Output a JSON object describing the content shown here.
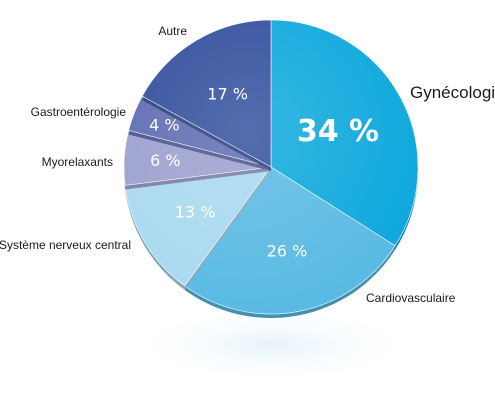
{
  "chart_data": {
    "type": "pie",
    "title": "",
    "slices": [
      {
        "label": "Gynécologie",
        "value": 34,
        "value_label": "34 %",
        "color": "#0aa7dc"
      },
      {
        "label": "Cardiovasculaire",
        "value": 26,
        "value_label": "26 %",
        "color": "#57b9e3"
      },
      {
        "label": "Système nerveux central",
        "value": 13,
        "value_label": "13 %",
        "color": "#a8d8ef"
      },
      {
        "label": "Myorelaxants",
        "value": 6,
        "value_label": "6 %",
        "color": "#9a9fce"
      },
      {
        "label": "Gastroentérologie",
        "value": 4,
        "value_label": "4 %",
        "color": "#5d6ab2"
      },
      {
        "label": "Autre",
        "value": 17,
        "value_label": "17 %",
        "color": "#2f4d9b"
      }
    ],
    "start_angle_deg": 0,
    "direction": "clockwise",
    "style": "3d-extruded-highlighted"
  }
}
